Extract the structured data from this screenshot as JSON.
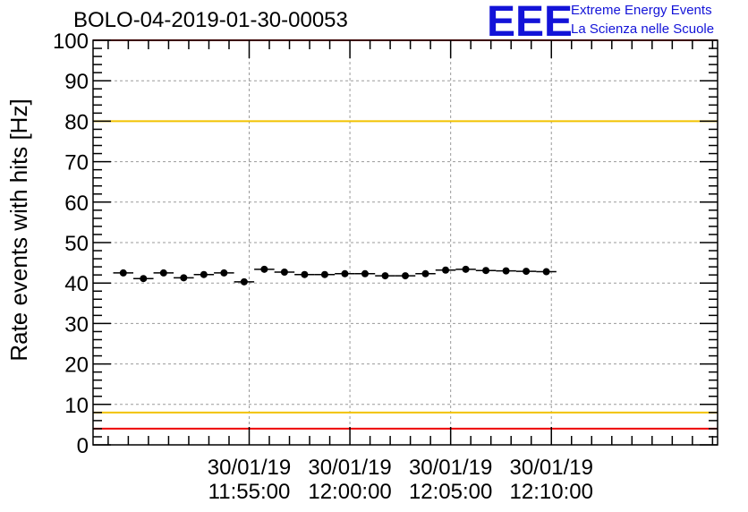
{
  "chart_data": {
    "type": "scatter",
    "title": "BOLO-04-2019-01-30-00053",
    "xlabel": "",
    "ylabel": "Rate events with hits [Hz]",
    "ylim": [
      0,
      100
    ],
    "xlim_minutes": [
      -12.75,
      18.25
    ],
    "yticks": [
      "0",
      "10",
      "20",
      "30",
      "40",
      "50",
      "60",
      "70",
      "80",
      "90",
      "100"
    ],
    "xticks": [
      {
        "date": "30/01/19",
        "time": "11:55:00",
        "minute": -5
      },
      {
        "date": "30/01/19",
        "time": "12:00:00",
        "minute": 0
      },
      {
        "date": "30/01/19",
        "time": "12:05:00",
        "minute": 5
      },
      {
        "date": "30/01/19",
        "time": "12:10:00",
        "minute": 10
      }
    ],
    "x_reference": "30/01/19 12:00:00",
    "bin_width_minutes": 1,
    "grid": true,
    "series": [
      {
        "name": "rate",
        "x_minutes": [
          -11.25,
          -10.25,
          -9.25,
          -8.25,
          -7.25,
          -6.25,
          -5.25,
          -4.25,
          -3.25,
          -2.25,
          -1.25,
          -0.25,
          0.75,
          1.75,
          2.75,
          3.75,
          4.75,
          5.75,
          6.75,
          7.75,
          8.75,
          9.75
        ],
        "values": [
          42.5,
          41.1,
          42.5,
          41.3,
          42.1,
          42.5,
          40.3,
          43.4,
          42.7,
          42.1,
          42.1,
          42.3,
          42.3,
          41.8,
          41.8,
          42.3,
          43.2,
          43.4,
          43.1,
          43.0,
          42.9,
          42.8
        ]
      }
    ],
    "reference_lines": [
      {
        "name": "upper-yellow",
        "y": 80,
        "color": "#f2c200"
      },
      {
        "name": "lower-yellow",
        "y": 8,
        "color": "#f2c200"
      },
      {
        "name": "upper-red",
        "y": 100,
        "color": "#ee0000"
      },
      {
        "name": "lower-red",
        "y": 4,
        "color": "#ee0000"
      }
    ]
  },
  "logo": {
    "mark": "EEE",
    "line1": "Extreme Energy Events",
    "line2": "La Scienza nelle Scuole",
    "color": "#1313d8"
  }
}
